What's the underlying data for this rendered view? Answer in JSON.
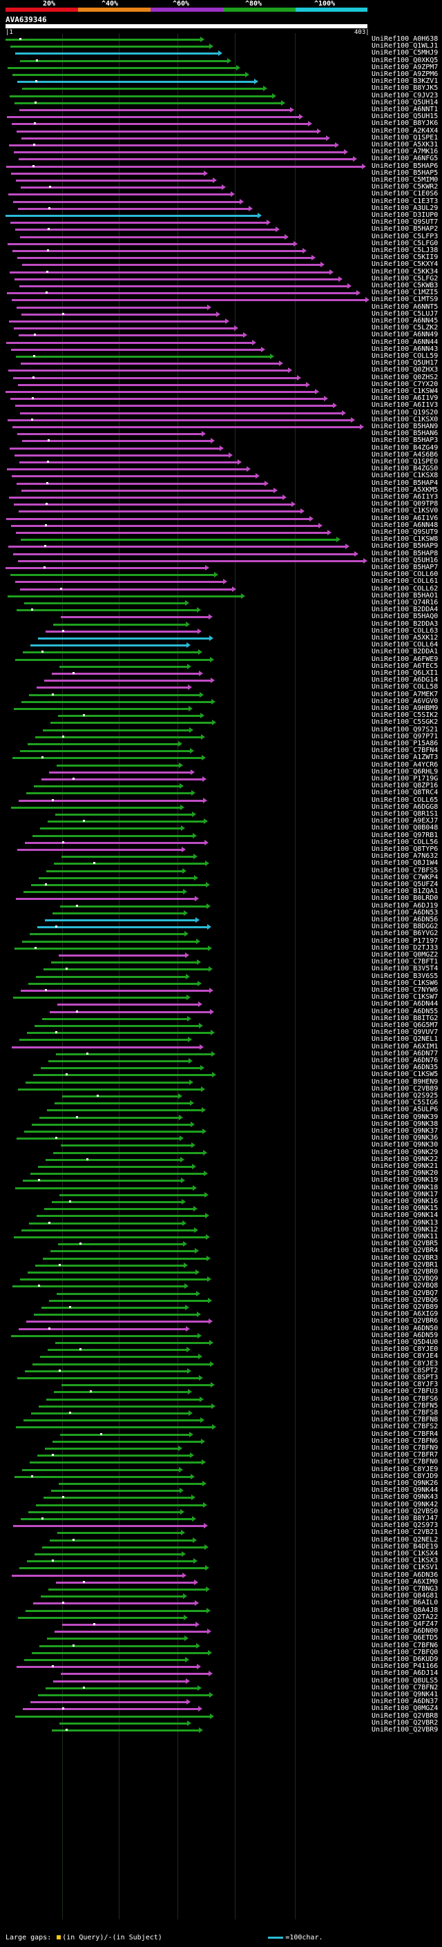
{
  "scale": {
    "labels": [
      "20%",
      "^40%",
      "^60%",
      "^80%",
      "^100%"
    ],
    "colors": [
      "#e0101b",
      "#e98418",
      "#9c32c5",
      "#1ea01e",
      "#1ec7d8"
    ]
  },
  "query": {
    "title": "AVA639346",
    "start_label": "|1",
    "end_label": "403|"
  },
  "legend": {
    "text": "Large gaps:",
    "query_text": "(in Query)/",
    "subject_text": "(in Subject)",
    "scale_text": "=100char."
  },
  "hits": [
    {
      "id": "UniRef100_A0H638",
      "color": "green"
    },
    {
      "id": "UniRef100_Q1WLJ1",
      "color": "green"
    },
    {
      "id": "UniRef100_C5MHJ9",
      "color": "cyan"
    },
    {
      "id": "UniRef100_Q0XKQ5",
      "color": "green"
    },
    {
      "id": "UniRef100_A9ZPM7",
      "color": "green"
    },
    {
      "id": "UniRef100_A9ZPM6",
      "color": "green"
    },
    {
      "id": "UniRef100_B3KZV1",
      "color": "cyan"
    },
    {
      "id": "UniRef100_B8YJK5",
      "color": "green"
    },
    {
      "id": "UniRef100_C9JV23",
      "color": "green"
    },
    {
      "id": "UniRef100_Q5UH14",
      "color": "green"
    },
    {
      "id": "UniRef100_A6NNT1",
      "color": "magenta"
    },
    {
      "id": "UniRef100_Q5UH15",
      "color": "magenta"
    },
    {
      "id": "UniRef100_B8YJK6",
      "color": "magenta"
    },
    {
      "id": "UniRef100_A2K4X4",
      "color": "magenta"
    },
    {
      "id": "UniRef100_Q1SPE1",
      "color": "magenta"
    },
    {
      "id": "UniRef100_A5XK31",
      "color": "magenta"
    },
    {
      "id": "UniRef100_A7MK16",
      "color": "magenta"
    },
    {
      "id": "UniRef100_A6NFG5",
      "color": "magenta"
    },
    {
      "id": "UniRef100_B5HAP6",
      "color": "magenta"
    },
    {
      "id": "UniRef100_B5HAP5",
      "color": "magenta"
    },
    {
      "id": "UniRef100_C5MIM0",
      "color": "magenta"
    },
    {
      "id": "UniRef100_C5KWR2",
      "color": "magenta"
    },
    {
      "id": "UniRef100_C1E0S6",
      "color": "magenta"
    },
    {
      "id": "UniRef100_C1E3T3",
      "color": "magenta"
    },
    {
      "id": "UniRef100_A3UL29",
      "color": "magenta"
    },
    {
      "id": "UniRef100_D3IUP0",
      "color": "cyan"
    },
    {
      "id": "UniRef100_Q9SUT7",
      "color": "magenta"
    },
    {
      "id": "UniRef100_B5HAP2",
      "color": "magenta"
    },
    {
      "id": "UniRef100_C5LFP3",
      "color": "magenta"
    },
    {
      "id": "UniRef100_C5LFG0",
      "color": "magenta"
    },
    {
      "id": "UniRef100_C5LJ38",
      "color": "magenta"
    },
    {
      "id": "UniRef100_C5KII9",
      "color": "magenta"
    },
    {
      "id": "UniRef100_C5KXY4",
      "color": "magenta"
    },
    {
      "id": "UniRef100_C5KK34",
      "color": "magenta"
    },
    {
      "id": "UniRef100_C5LFG2",
      "color": "magenta"
    },
    {
      "id": "UniRef100_C5KWB3",
      "color": "magenta"
    },
    {
      "id": "UniRef100_C1MZI5",
      "color": "magenta"
    },
    {
      "id": "UniRef100_C1MTS9",
      "color": "magenta"
    },
    {
      "id": "UniRef100_A6NNT5",
      "color": "magenta"
    },
    {
      "id": "UniRef100_C5LUJ7",
      "color": "magenta"
    },
    {
      "id": "UniRef100_A6NN45",
      "color": "magenta"
    },
    {
      "id": "UniRef100_C5LZK2",
      "color": "magenta"
    },
    {
      "id": "UniRef100_A6NN49",
      "color": "magenta"
    },
    {
      "id": "UniRef100_A6NN44",
      "color": "magenta"
    },
    {
      "id": "UniRef100_A6NN43",
      "color": "magenta"
    },
    {
      "id": "UniRef100_COLL59",
      "color": "green"
    },
    {
      "id": "UniRef100_Q5UH17",
      "color": "magenta"
    },
    {
      "id": "UniRef100_Q0ZHX3",
      "color": "magenta"
    },
    {
      "id": "UniRef100_Q0ZHS2",
      "color": "magenta"
    },
    {
      "id": "UniRef100_C7YX20",
      "color": "magenta"
    },
    {
      "id": "UniRef100_C1KSW4",
      "color": "magenta"
    },
    {
      "id": "UniRef100_A6I1V9",
      "color": "magenta"
    },
    {
      "id": "UniRef100_A6I1V3",
      "color": "magenta"
    },
    {
      "id": "UniRef100_Q19S20",
      "color": "magenta"
    },
    {
      "id": "UniRef100_C1KSX0",
      "color": "magenta"
    },
    {
      "id": "UniRef100_B5HAN9",
      "color": "magenta"
    },
    {
      "id": "UniRef100_B5HAN6",
      "color": "magenta"
    },
    {
      "id": "UniRef100_B5HAP3",
      "color": "magenta"
    },
    {
      "id": "UniRef100_B4ZG49",
      "color": "magenta"
    },
    {
      "id": "UniRef100_A4S6B6",
      "color": "magenta"
    },
    {
      "id": "UniRef100_Q1SPE0",
      "color": "magenta"
    },
    {
      "id": "UniRef100_B4ZGS0",
      "color": "magenta"
    },
    {
      "id": "UniRef100_C1KSX8",
      "color": "magenta"
    },
    {
      "id": "UniRef100_B5HAP4",
      "color": "magenta"
    },
    {
      "id": "UniRef100_A5XKM5",
      "color": "magenta"
    },
    {
      "id": "UniRef100_A6I1Y3",
      "color": "magenta"
    },
    {
      "id": "UniRef100_Q09TP8",
      "color": "magenta"
    },
    {
      "id": "UniRef100_C1KSV0",
      "color": "magenta"
    },
    {
      "id": "UniRef100_A6I1V6",
      "color": "magenta"
    },
    {
      "id": "UniRef100_A6NN48",
      "color": "magenta"
    },
    {
      "id": "UniRef100_Q9SUT9",
      "color": "magenta"
    },
    {
      "id": "UniRef100_C1KSW8",
      "color": "green"
    },
    {
      "id": "UniRef100_B5HAP9",
      "color": "magenta"
    },
    {
      "id": "UniRef100_B5HAP8",
      "color": "magenta"
    },
    {
      "id": "UniRef100_Q5UH16",
      "color": "magenta"
    },
    {
      "id": "UniRef100_B5HAP7",
      "color": "magenta"
    },
    {
      "id": "UniRef100_COLL60",
      "color": "green"
    },
    {
      "id": "UniRef100_COLL61",
      "color": "magenta"
    },
    {
      "id": "UniRef100_COLL62",
      "color": "magenta"
    },
    {
      "id": "UniRef100_B5HAO1",
      "color": "green"
    },
    {
      "id": "UniRef100_Q74R16",
      "color": "green"
    },
    {
      "id": "UniRef100_B2DDA4",
      "color": "green"
    },
    {
      "id": "UniRef100_B5HAQ0",
      "color": "magenta"
    },
    {
      "id": "UniRef100_B2DDA3",
      "color": "green"
    },
    {
      "id": "UniRef100_COLL63",
      "color": "magenta"
    },
    {
      "id": "UniRef100_A5XK12",
      "color": "cyan"
    },
    {
      "id": "UniRef100_COLL64",
      "color": "cyan"
    },
    {
      "id": "UniRef100_B2DDA1",
      "color": "green"
    },
    {
      "id": "UniRef100_A6FWE9",
      "color": "green"
    },
    {
      "id": "UniRef100_A6TEC5",
      "color": "green"
    },
    {
      "id": "UniRef100_Q6LXI1",
      "color": "magenta"
    },
    {
      "id": "UniRef100_A6DG14",
      "color": "magenta"
    },
    {
      "id": "UniRef100_COLL58",
      "color": "magenta"
    },
    {
      "id": "UniRef100_A7MEK7",
      "color": "green"
    },
    {
      "id": "UniRef100_A6VGV0",
      "color": "green"
    },
    {
      "id": "UniRef100_A9HBM9",
      "color": "green"
    },
    {
      "id": "UniRef100_C5SIK2",
      "color": "green"
    },
    {
      "id": "UniRef100_C5SGK2",
      "color": "green"
    },
    {
      "id": "UniRef100_Q97S21",
      "color": "green"
    },
    {
      "id": "UniRef100_Q97P71",
      "color": "green"
    },
    {
      "id": "UniRef100_P15A86",
      "color": "green"
    },
    {
      "id": "UniRef100_C7BFN4",
      "color": "green"
    },
    {
      "id": "UniRef100_A1ZWT3",
      "color": "green"
    },
    {
      "id": "UniRef100_A4YCR6",
      "color": "green"
    },
    {
      "id": "UniRef100_Q6RHL9",
      "color": "magenta"
    },
    {
      "id": "UniRef100_P1719G",
      "color": "magenta"
    },
    {
      "id": "UniRef100_Q8ZP16",
      "color": "green"
    },
    {
      "id": "UniRef100_Q8TRC4",
      "color": "green"
    },
    {
      "id": "UniRef100_COLL65",
      "color": "magenta"
    },
    {
      "id": "UniRef100_A6DGG8",
      "color": "green"
    },
    {
      "id": "UniRef100_Q8R1S1",
      "color": "green"
    },
    {
      "id": "UniRef100_A9EXJ7",
      "color": "green"
    },
    {
      "id": "UniRef100_Q0B048",
      "color": "green"
    },
    {
      "id": "UniRef100_Q97RB1",
      "color": "green"
    },
    {
      "id": "UniRef100_COLL56",
      "color": "magenta"
    },
    {
      "id": "UniRef100_Q8TYP6",
      "color": "magenta"
    },
    {
      "id": "UniRef100_A7N632",
      "color": "green"
    },
    {
      "id": "UniRef100_Q8J1W4",
      "color": "green"
    },
    {
      "id": "UniRef100_C7BFS5",
      "color": "green"
    },
    {
      "id": "UniRef100_C7WKP4",
      "color": "green"
    },
    {
      "id": "UniRef100_Q5UFZ4",
      "color": "green"
    },
    {
      "id": "UniRef100_B1ZQA1",
      "color": "green"
    },
    {
      "id": "UniRef100_B0LRD0",
      "color": "magenta"
    },
    {
      "id": "UniRef100_A6DJ19",
      "color": "green"
    },
    {
      "id": "UniRef100_A6DN53",
      "color": "green"
    },
    {
      "id": "UniRef100_A6DN56",
      "color": "cyan"
    },
    {
      "id": "UniRef100_B8DGG2",
      "color": "cyan"
    },
    {
      "id": "UniRef100_B6YVG2",
      "color": "green"
    },
    {
      "id": "UniRef100_P17197",
      "color": "green"
    },
    {
      "id": "UniRef100_D2TJ33",
      "color": "green"
    },
    {
      "id": "UniRef100_Q0MGZ2",
      "color": "magenta"
    },
    {
      "id": "UniRef100_C7BFT1",
      "color": "green"
    },
    {
      "id": "UniRef100_B3V5T4",
      "color": "green"
    },
    {
      "id": "UniRef100_B3V6S5",
      "color": "green"
    },
    {
      "id": "UniRef100_C1KSW6",
      "color": "green"
    },
    {
      "id": "UniRef100_C7NYW6",
      "color": "magenta"
    },
    {
      "id": "UniRef100_C1KSW7",
      "color": "green"
    },
    {
      "id": "UniRef100_A6DN44",
      "color": "magenta"
    },
    {
      "id": "UniRef100_A6DN55",
      "color": "magenta"
    },
    {
      "id": "UniRef100_B8ITG2",
      "color": "green"
    },
    {
      "id": "UniRef100_Q6G5M7",
      "color": "green"
    },
    {
      "id": "UniRef100_Q9VUV7",
      "color": "green"
    },
    {
      "id": "UniRef100_Q2NEL1",
      "color": "green"
    },
    {
      "id": "UniRef100_A6XIM1",
      "color": "magenta"
    },
    {
      "id": "UniRef100_A6DN77",
      "color": "green"
    },
    {
      "id": "UniRef100_A6DN76",
      "color": "green"
    },
    {
      "id": "UniRef100_A6DN35",
      "color": "green"
    },
    {
      "id": "UniRef100_C1KSW5",
      "color": "green"
    },
    {
      "id": "UniRef100_B9HEN9",
      "color": "green"
    },
    {
      "id": "UniRef100_C2VB89",
      "color": "green"
    },
    {
      "id": "UniRef100_Q2S925",
      "color": "green"
    },
    {
      "id": "UniRef100_C5SIG6",
      "color": "green"
    },
    {
      "id": "UniRef100_A5ULP6",
      "color": "green"
    },
    {
      "id": "UniRef100_Q9NK39",
      "color": "green"
    },
    {
      "id": "UniRef100_Q9NK38",
      "color": "green"
    },
    {
      "id": "UniRef100_Q9NK37",
      "color": "green"
    },
    {
      "id": "UniRef100_Q9NK36",
      "color": "green"
    },
    {
      "id": "UniRef100_Q9NK30",
      "color": "green"
    },
    {
      "id": "UniRef100_Q9NK29",
      "color": "green"
    },
    {
      "id": "UniRef100_Q9NK22",
      "color": "green"
    },
    {
      "id": "UniRef100_Q9NK21",
      "color": "green"
    },
    {
      "id": "UniRef100_Q9NK20",
      "color": "green"
    },
    {
      "id": "UniRef100_Q9NK19",
      "color": "green"
    },
    {
      "id": "UniRef100_Q9NK18",
      "color": "green"
    },
    {
      "id": "UniRef100_Q9NK17",
      "color": "green"
    },
    {
      "id": "UniRef100_Q9NK16",
      "color": "green"
    },
    {
      "id": "UniRef100_Q9NK15",
      "color": "green"
    },
    {
      "id": "UniRef100_Q9NK14",
      "color": "green"
    },
    {
      "id": "UniRef100_Q9NK13",
      "color": "green"
    },
    {
      "id": "UniRef100_Q9NK12",
      "color": "green"
    },
    {
      "id": "UniRef100_Q9NK11",
      "color": "green"
    },
    {
      "id": "UniRef100_Q2VBR5",
      "color": "green"
    },
    {
      "id": "UniRef100_Q2VBR4",
      "color": "green"
    },
    {
      "id": "UniRef100_Q2VBR3",
      "color": "green"
    },
    {
      "id": "UniRef100_Q2VBR1",
      "color": "green"
    },
    {
      "id": "UniRef100_Q2VBR0",
      "color": "green"
    },
    {
      "id": "UniRef100_Q2VBQ9",
      "color": "green"
    },
    {
      "id": "UniRef100_Q2VBQ8",
      "color": "green"
    },
    {
      "id": "UniRef100_Q2VBQ7",
      "color": "green"
    },
    {
      "id": "UniRef100_Q2VBQ6",
      "color": "green"
    },
    {
      "id": "UniRef100_Q2VB89",
      "color": "green"
    },
    {
      "id": "UniRef100_A6XIG9",
      "color": "green"
    },
    {
      "id": "UniRef100_Q2VBR6",
      "color": "magenta"
    },
    {
      "id": "UniRef100_A6DN50",
      "color": "magenta"
    },
    {
      "id": "UniRef100_A6DN59",
      "color": "green"
    },
    {
      "id": "UniRef100_Q5D4U0",
      "color": "green"
    },
    {
      "id": "UniRef100_C8YJE0",
      "color": "green"
    },
    {
      "id": "UniRef100_C8YJE4",
      "color": "green"
    },
    {
      "id": "UniRef100_C8YJE3",
      "color": "green"
    },
    {
      "id": "UniRef100_C8SPT2",
      "color": "green"
    },
    {
      "id": "UniRef100_C8SPT3",
      "color": "green"
    },
    {
      "id": "UniRef100_C8YJF3",
      "color": "green"
    },
    {
      "id": "UniRef100_C7BFU3",
      "color": "green"
    },
    {
      "id": "UniRef100_C7BFS6",
      "color": "green"
    },
    {
      "id": "UniRef100_C7BFN5",
      "color": "green"
    },
    {
      "id": "UniRef100_C7BFS8",
      "color": "green"
    },
    {
      "id": "UniRef100_C7BFN8",
      "color": "green"
    },
    {
      "id": "UniRef100_C7BFS2",
      "color": "green"
    },
    {
      "id": "UniRef100_C7BFR4",
      "color": "green"
    },
    {
      "id": "UniRef100_C7BFN6",
      "color": "green"
    },
    {
      "id": "UniRef100_C7BFN9",
      "color": "green"
    },
    {
      "id": "UniRef100_C7BFR7",
      "color": "green"
    },
    {
      "id": "UniRef100_C7BFN0",
      "color": "green"
    },
    {
      "id": "UniRef100_C8YJE9",
      "color": "green"
    },
    {
      "id": "UniRef100_C8YJD9",
      "color": "green"
    },
    {
      "id": "UniRef100_Q9NK26",
      "color": "green"
    },
    {
      "id": "UniRef100_Q9NK44",
      "color": "green"
    },
    {
      "id": "UniRef100_Q9NK43",
      "color": "green"
    },
    {
      "id": "UniRef100_Q9NK42",
      "color": "green"
    },
    {
      "id": "UniRef100_Q2VBS0",
      "color": "green"
    },
    {
      "id": "UniRef100_B8YJ47",
      "color": "green"
    },
    {
      "id": "UniRef100_Q2S973",
      "color": "magenta"
    },
    {
      "id": "UniRef100_C2VB21",
      "color": "green"
    },
    {
      "id": "UniRef100_Q2NEL2",
      "color": "green"
    },
    {
      "id": "UniRef100_B4DE19",
      "color": "green"
    },
    {
      "id": "UniRef100_C1KSX4",
      "color": "green"
    },
    {
      "id": "UniRef100_C1KSX3",
      "color": "green"
    },
    {
      "id": "UniRef100_C1KSV1",
      "color": "green"
    },
    {
      "id": "UniRef100_A6DN36",
      "color": "magenta"
    },
    {
      "id": "UniRef100_A6XIM0",
      "color": "magenta"
    },
    {
      "id": "UniRef100_C7BNG3",
      "color": "green"
    },
    {
      "id": "UniRef100_Q84G81",
      "color": "green"
    },
    {
      "id": "UniRef100_B6AIL0",
      "color": "magenta"
    },
    {
      "id": "UniRef100_Q8A4J8",
      "color": "green"
    },
    {
      "id": "UniRef100_Q2TA22",
      "color": "green"
    },
    {
      "id": "UniRef100_Q4FZ47",
      "color": "magenta"
    },
    {
      "id": "UniRef100_A6DN00",
      "color": "magenta"
    },
    {
      "id": "UniRef100_Q6ETD5",
      "color": "green"
    },
    {
      "id": "UniRef100_C7BFN6",
      "color": "green"
    },
    {
      "id": "UniRef100_C7BFQ0",
      "color": "green"
    },
    {
      "id": "UniRef100_D6KUD9",
      "color": "green"
    },
    {
      "id": "UniRef100_P41166",
      "color": "magenta"
    },
    {
      "id": "UniRef100_A6DJ14",
      "color": "magenta"
    },
    {
      "id": "UniRef100_Q8ULS5",
      "color": "magenta"
    },
    {
      "id": "UniRef100_C7BFN2",
      "color": "green"
    },
    {
      "id": "UniRef100_Q9NK41",
      "color": "green"
    },
    {
      "id": "UniRef100_A6DN37",
      "color": "magenta"
    },
    {
      "id": "UniRef100_Q0MGZ4",
      "color": "magenta"
    },
    {
      "id": "UniRef100_Q2VBR8",
      "color": "green"
    },
    {
      "id": "UniRef100_Q2VBR2",
      "color": "green"
    },
    {
      "id": "UniRef100_Q2VBR9",
      "color": "green"
    }
  ]
}
